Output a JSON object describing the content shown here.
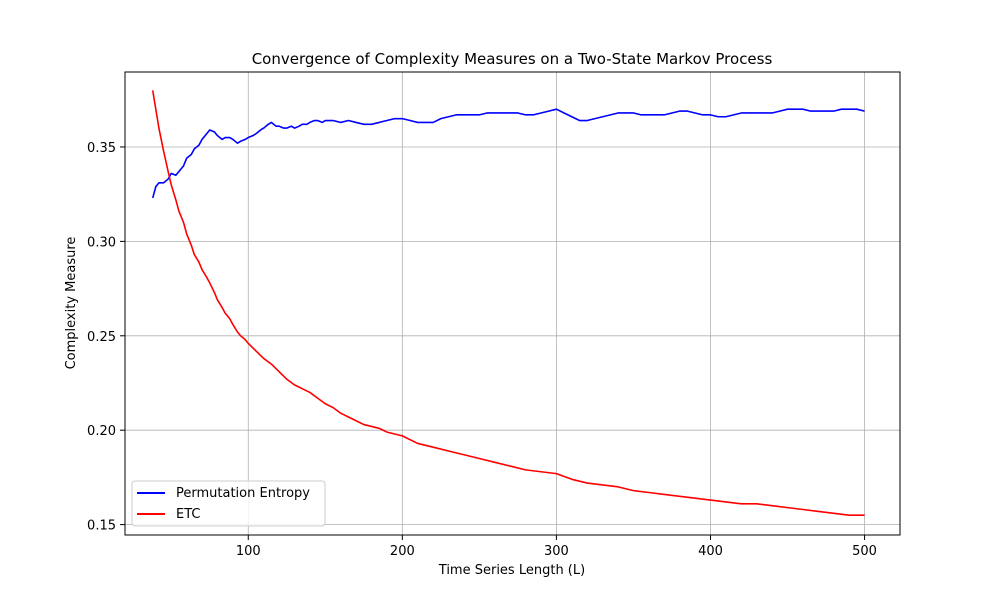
{
  "chart_data": {
    "type": "line",
    "title": "Convergence of Complexity Measures on a Two-State Markov Process",
    "xlabel": "Time Series Length (L)",
    "ylabel": "Complexity Measure",
    "xlim": [
      20,
      523
    ],
    "ylim": [
      0.1445,
      0.3897
    ],
    "xticks": [
      100,
      200,
      300,
      400,
      500
    ],
    "yticks": [
      0.15,
      0.2,
      0.25,
      0.3,
      0.35
    ],
    "xtick_labels": [
      "100",
      "200",
      "300",
      "400",
      "500"
    ],
    "ytick_labels": [
      "0.15",
      "0.20",
      "0.25",
      "0.30",
      "0.35"
    ],
    "grid": true,
    "legend_position": "lower-left",
    "series": [
      {
        "name": "Permutation Entropy",
        "color": "#0000ff",
        "x": [
          38,
          40,
          42,
          45,
          48,
          50,
          53,
          55,
          58,
          60,
          63,
          65,
          68,
          70,
          72,
          75,
          78,
          80,
          83,
          85,
          88,
          90,
          93,
          95,
          98,
          100,
          103,
          105,
          108,
          110,
          113,
          115,
          118,
          120,
          123,
          125,
          128,
          130,
          133,
          135,
          138,
          140,
          143,
          145,
          148,
          150,
          155,
          160,
          165,
          170,
          175,
          180,
          185,
          190,
          195,
          200,
          205,
          210,
          215,
          220,
          225,
          230,
          235,
          240,
          245,
          250,
          255,
          260,
          265,
          270,
          275,
          280,
          285,
          290,
          295,
          300,
          305,
          310,
          315,
          320,
          325,
          330,
          335,
          340,
          345,
          350,
          355,
          360,
          365,
          370,
          375,
          380,
          385,
          390,
          395,
          400,
          405,
          410,
          415,
          420,
          425,
          430,
          435,
          440,
          445,
          450,
          455,
          460,
          465,
          470,
          475,
          480,
          485,
          490,
          495,
          500
        ],
        "values": [
          0.323,
          0.329,
          0.331,
          0.331,
          0.333,
          0.336,
          0.335,
          0.337,
          0.34,
          0.344,
          0.346,
          0.349,
          0.351,
          0.354,
          0.356,
          0.359,
          0.358,
          0.356,
          0.354,
          0.355,
          0.355,
          0.354,
          0.352,
          0.353,
          0.354,
          0.355,
          0.356,
          0.357,
          0.359,
          0.36,
          0.362,
          0.363,
          0.361,
          0.361,
          0.36,
          0.36,
          0.361,
          0.36,
          0.361,
          0.362,
          0.362,
          0.363,
          0.364,
          0.364,
          0.363,
          0.364,
          0.364,
          0.363,
          0.364,
          0.363,
          0.362,
          0.362,
          0.363,
          0.364,
          0.365,
          0.365,
          0.364,
          0.363,
          0.363,
          0.363,
          0.365,
          0.366,
          0.367,
          0.367,
          0.367,
          0.367,
          0.368,
          0.368,
          0.368,
          0.368,
          0.368,
          0.367,
          0.367,
          0.368,
          0.369,
          0.37,
          0.368,
          0.366,
          0.364,
          0.364,
          0.365,
          0.366,
          0.367,
          0.368,
          0.368,
          0.368,
          0.367,
          0.367,
          0.367,
          0.367,
          0.368,
          0.369,
          0.369,
          0.368,
          0.367,
          0.367,
          0.366,
          0.366,
          0.367,
          0.368,
          0.368,
          0.368,
          0.368,
          0.368,
          0.369,
          0.37,
          0.37,
          0.37,
          0.369,
          0.369,
          0.369,
          0.369,
          0.37,
          0.37,
          0.37,
          0.369
        ]
      },
      {
        "name": "ETC",
        "color": "#ff0000",
        "x": [
          38,
          40,
          42,
          45,
          48,
          50,
          53,
          55,
          58,
          60,
          63,
          65,
          68,
          70,
          73,
          75,
          78,
          80,
          83,
          85,
          88,
          90,
          93,
          95,
          98,
          100,
          105,
          110,
          115,
          120,
          125,
          130,
          135,
          140,
          145,
          150,
          155,
          160,
          165,
          170,
          175,
          180,
          185,
          190,
          195,
          200,
          210,
          220,
          230,
          240,
          250,
          260,
          270,
          280,
          290,
          300,
          310,
          320,
          330,
          340,
          350,
          360,
          370,
          380,
          390,
          400,
          410,
          420,
          430,
          440,
          450,
          460,
          470,
          480,
          490,
          500
        ],
        "values": [
          0.38,
          0.37,
          0.36,
          0.348,
          0.337,
          0.33,
          0.322,
          0.316,
          0.31,
          0.304,
          0.298,
          0.293,
          0.289,
          0.285,
          0.281,
          0.278,
          0.273,
          0.269,
          0.265,
          0.262,
          0.259,
          0.256,
          0.252,
          0.25,
          0.248,
          0.246,
          0.242,
          0.238,
          0.235,
          0.231,
          0.227,
          0.224,
          0.222,
          0.22,
          0.217,
          0.214,
          0.212,
          0.209,
          0.207,
          0.205,
          0.203,
          0.202,
          0.201,
          0.199,
          0.198,
          0.197,
          0.193,
          0.191,
          0.189,
          0.187,
          0.185,
          0.183,
          0.181,
          0.179,
          0.178,
          0.177,
          0.174,
          0.172,
          0.171,
          0.17,
          0.168,
          0.167,
          0.166,
          0.165,
          0.164,
          0.163,
          0.162,
          0.161,
          0.161,
          0.16,
          0.159,
          0.158,
          0.157,
          0.156,
          0.155,
          0.155
        ]
      }
    ]
  }
}
